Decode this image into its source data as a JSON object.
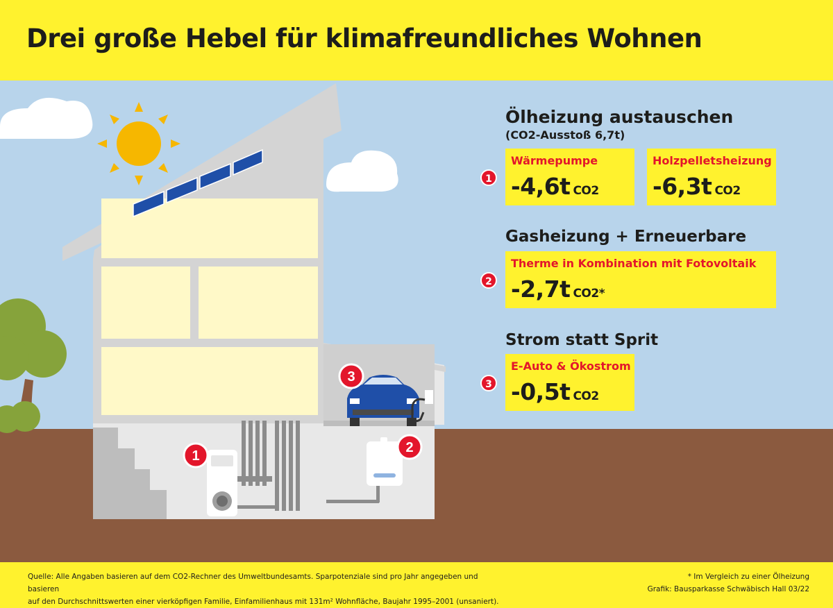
{
  "title": "Drei große Hebel für klimafreundliches Wohnen",
  "colors": {
    "yellow": "#FFF22E",
    "red": "#E3162B",
    "sky": "#B8D4EB",
    "ground": "#8B5A3F",
    "house": "#D4D4D4",
    "light": "#FFF9C8"
  },
  "lever1": {
    "heading": "Ölheizung austauschen",
    "subheading": "(CO2-Ausstoß 6,7t)",
    "badge": "1",
    "options": [
      {
        "label": "Wärmepumpe",
        "value": "-4,6t",
        "unit": "CO2"
      },
      {
        "label": "Holzpelletsheizung",
        "value": "-6,3t",
        "unit": "CO2"
      }
    ]
  },
  "lever2": {
    "heading": "Gasheizung + Erneuerbare",
    "badge": "2",
    "label": "Therme in Kombination mit Fotovoltaik",
    "value": "-2,7t",
    "unit": "CO2*"
  },
  "lever3": {
    "heading": "Strom statt Sprit",
    "badge": "3",
    "label": "E-Auto & Ökostrom",
    "value": "-0,5t",
    "unit": "CO2"
  },
  "illustration": {
    "markers": [
      "1",
      "2",
      "3"
    ],
    "icons": [
      "sun-icon",
      "solar-panel-icon",
      "cloud-icon",
      "tree-icon",
      "heat-pump-icon",
      "gas-boiler-icon",
      "electric-car-icon",
      "charging-cable-icon",
      "stairs-icon",
      "pipes-icon"
    ]
  },
  "footer": {
    "source_line1": "Quelle: Alle Angaben basieren auf dem CO2-Rechner des Umweltbundesamts. Sparpotenziale sind pro Jahr angegeben und basieren",
    "source_line2": "auf den Durchschnittswerten einer vierköpfigen Familie, Einfamilienhaus mit 131m² Wohnfläche, Baujahr 1995–2001 (unsaniert).",
    "footnote": "* Im Vergleich zu einer Ölheizung",
    "credit": "Grafik: Bausparkasse Schwäbisch Hall 03/22"
  }
}
